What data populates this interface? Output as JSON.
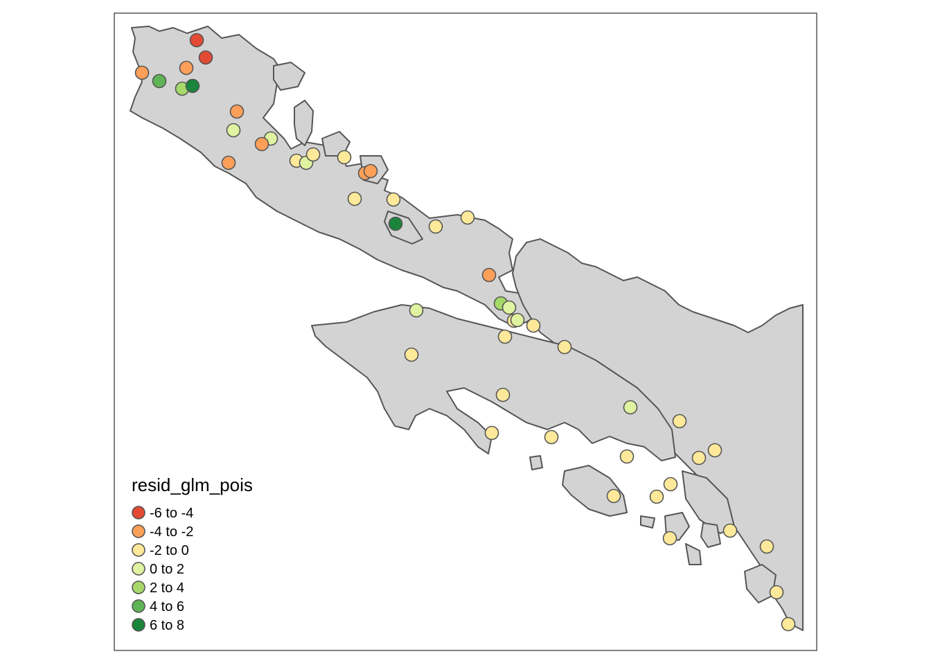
{
  "legend": {
    "title": "resid_glm_pois",
    "classes": [
      {
        "label": "-6 to -4",
        "color": "#e34a33"
      },
      {
        "label": "-4 to -2",
        "color": "#fc9f59"
      },
      {
        "label": "-2 to 0",
        "color": "#fee99a"
      },
      {
        "label": "0 to 2",
        "color": "#e0f3a0"
      },
      {
        "label": "2 to 4",
        "color": "#a6d96a"
      },
      {
        "label": "4 to 6",
        "color": "#5fb455"
      },
      {
        "label": "6 to 8",
        "color": "#1a853b"
      }
    ]
  },
  "colors": {
    "land_fill": "#d3d3d3",
    "land_stroke": "#555555",
    "frame": "#555555"
  }
}
